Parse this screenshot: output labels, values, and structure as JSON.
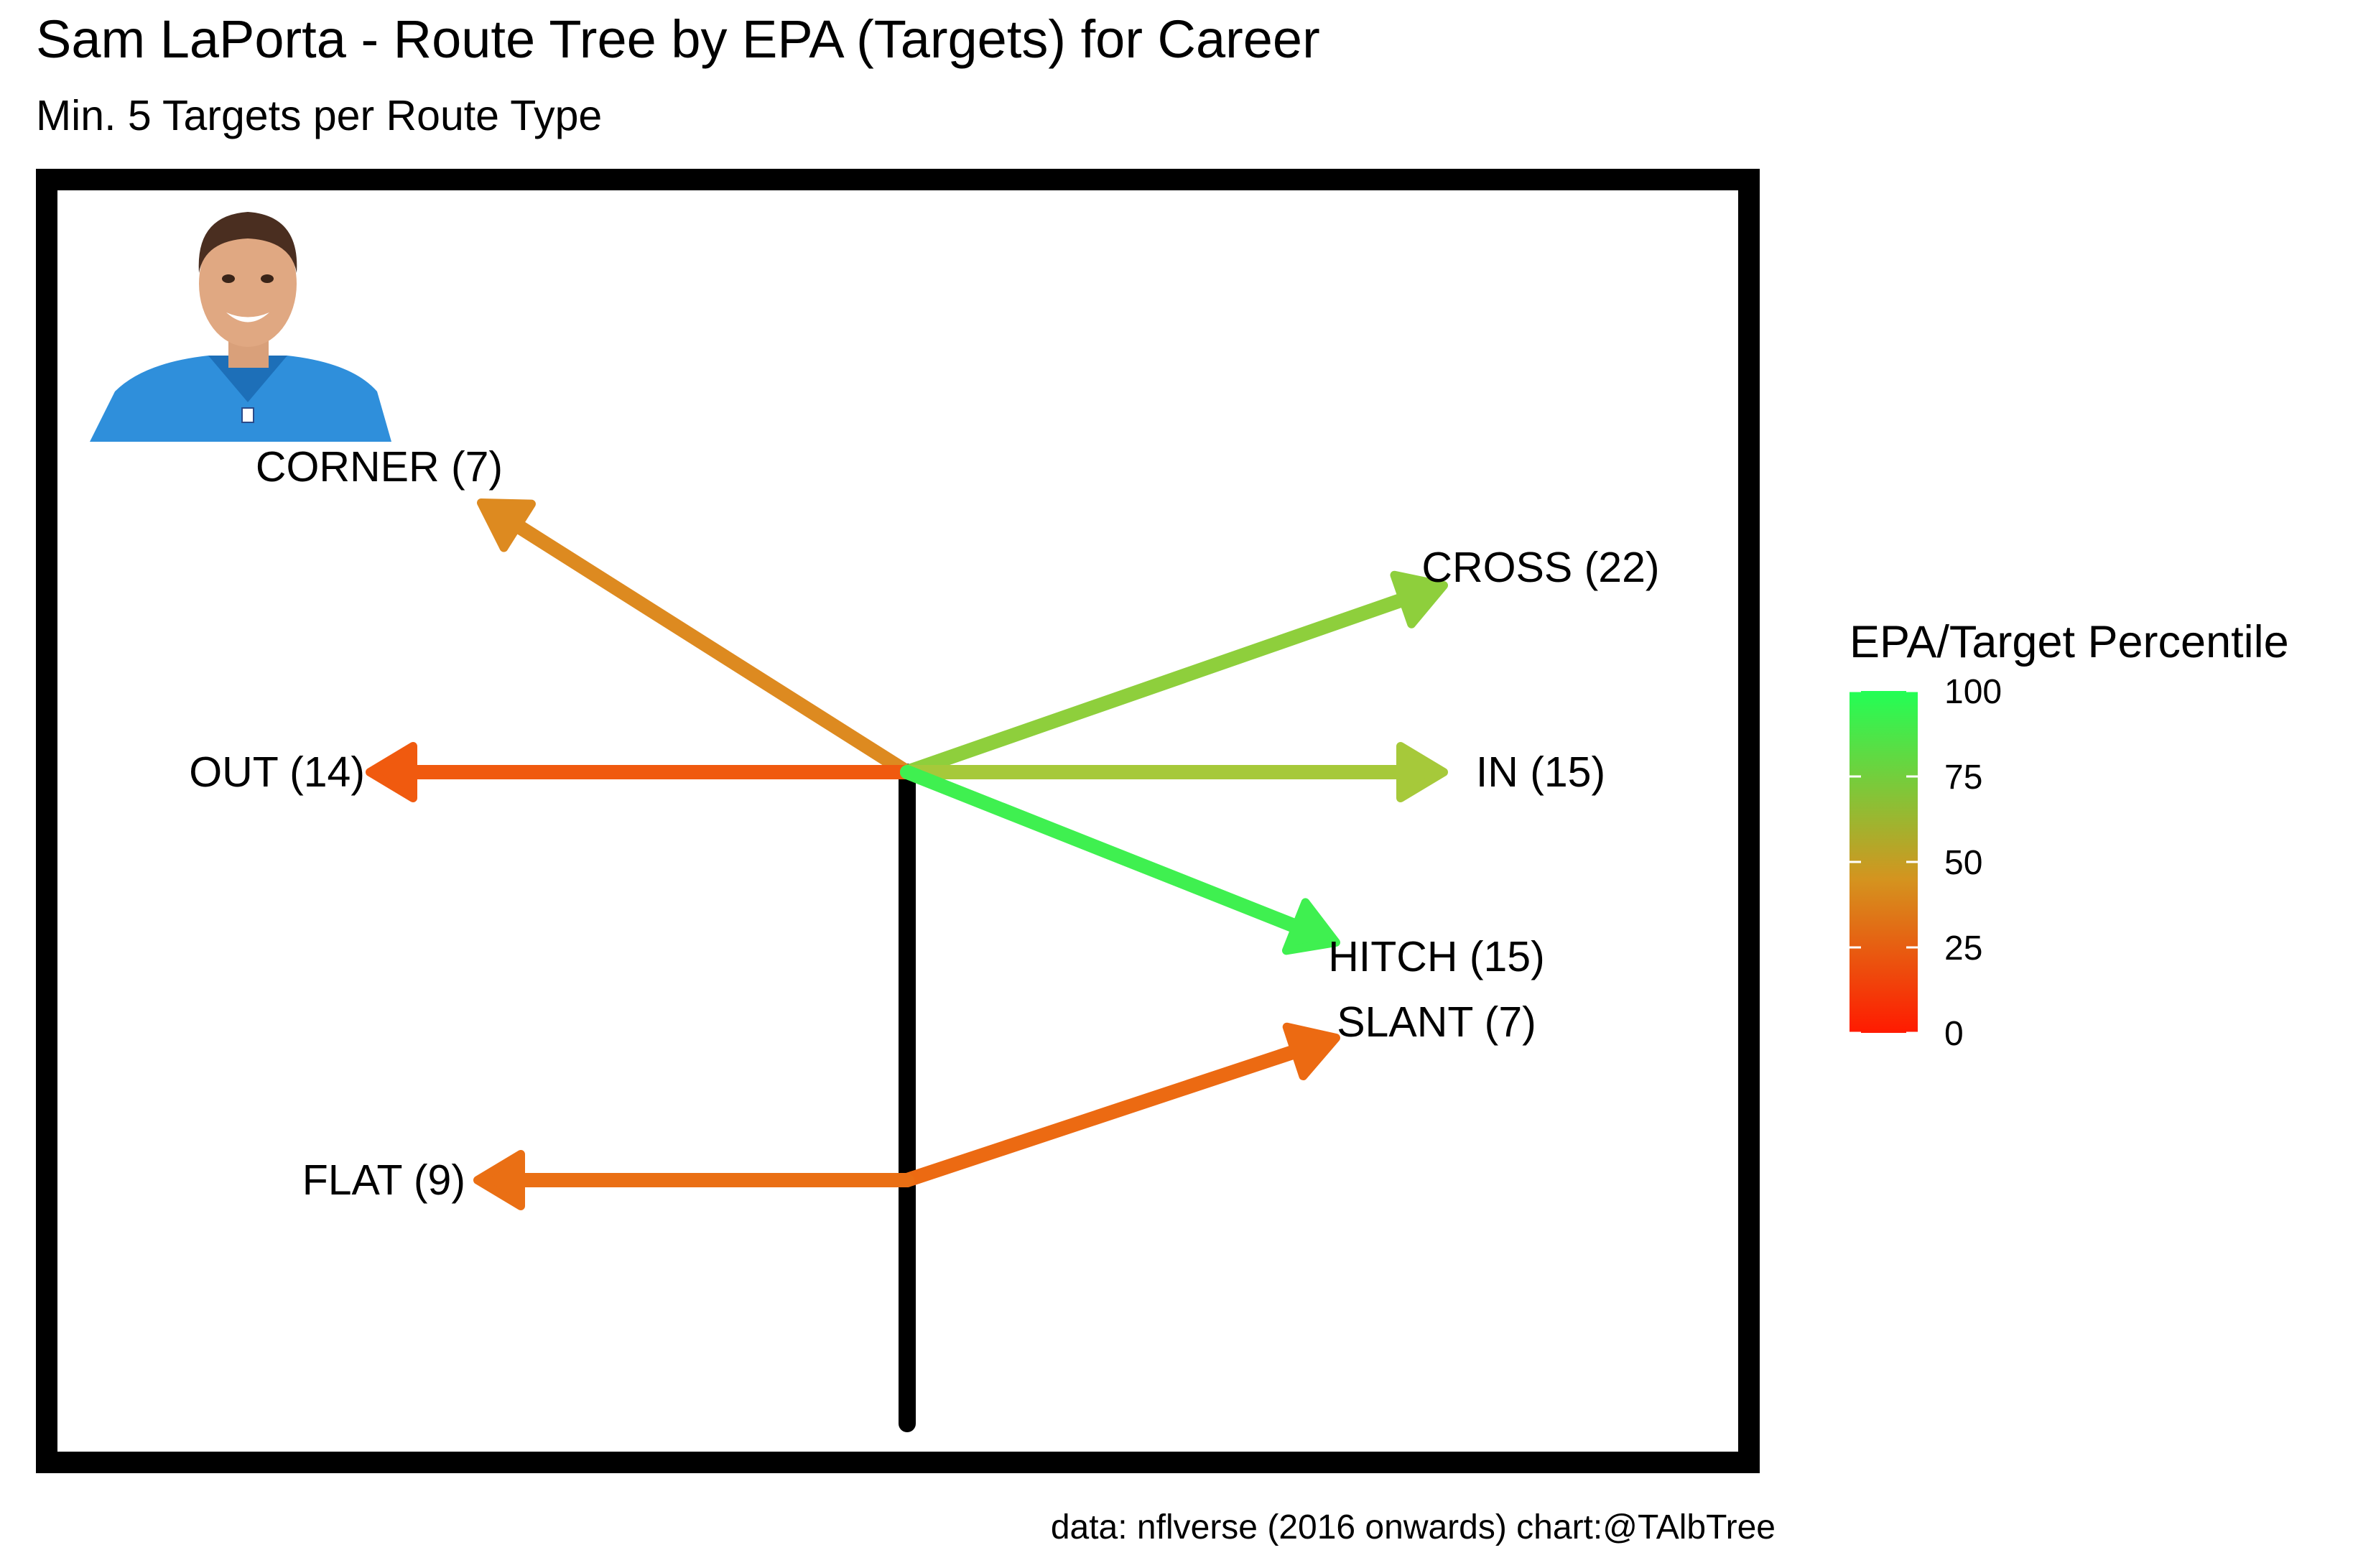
{
  "title": "Sam LaPorta - Route Tree by EPA (Targets) for Career",
  "subtitle": "Min. 5 Targets per Route Type",
  "caption": "data: nflverse (2016 onwards)  chart:@TAlbTree",
  "legend": {
    "title": "EPA/Target Percentile",
    "ticks": [
      "0",
      "25",
      "50",
      "75",
      "100"
    ],
    "color_low": "#ff1a00",
    "color_mid": "#d4941f",
    "color_high": "#22ff55"
  },
  "player_photo": {
    "icon": "player-headshot",
    "jersey_color": "#2f8fdb"
  },
  "chart_data": {
    "type": "route-tree",
    "routes": [
      {
        "route": "CORNER",
        "label": "CORNER (7)",
        "targets": 7,
        "percentile": 38,
        "color": "#dd8a20"
      },
      {
        "route": "OUT",
        "label": "OUT (14)",
        "targets": 14,
        "percentile": 14,
        "color": "#f05a0f"
      },
      {
        "route": "CROSS",
        "label": "CROSS (22)",
        "targets": 22,
        "percentile": 82,
        "color": "#8ecf3c"
      },
      {
        "route": "IN",
        "label": "IN (15)",
        "targets": 15,
        "percentile": 75,
        "color": "#a6c93a"
      },
      {
        "route": "HITCH",
        "label": "HITCH (15)",
        "targets": 15,
        "percentile": 98,
        "color": "#3ff050"
      },
      {
        "route": "SLANT",
        "label": "SLANT (7)",
        "targets": 7,
        "percentile": 22,
        "color": "#ec6a12"
      },
      {
        "route": "FLAT",
        "label": "FLAT (9)",
        "targets": 9,
        "percentile": 27,
        "color": "#ea6f14"
      }
    ]
  }
}
